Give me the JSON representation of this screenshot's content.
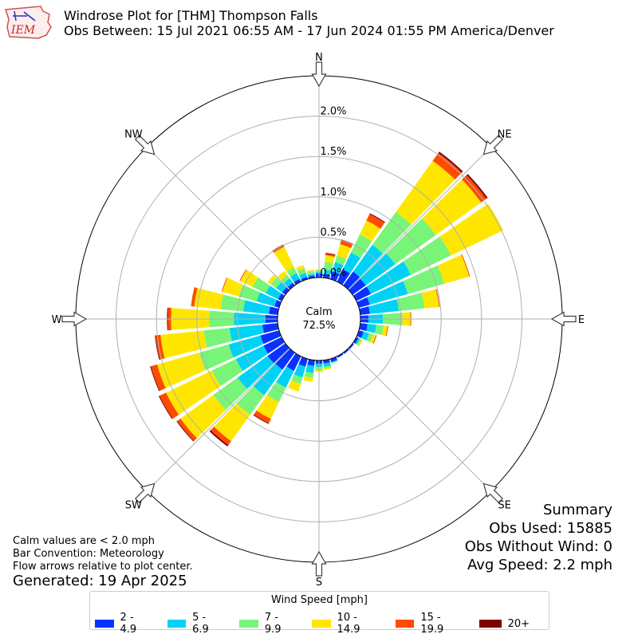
{
  "header": {
    "title": "Windrose Plot for [THM] Thompson Falls",
    "subtitle": "Obs Between: 15 Jul 2021 06:55 AM - 17 Jun 2024 01:55 PM America/Denver",
    "logo_text": "IEM"
  },
  "summary": {
    "heading": "Summary",
    "obs_used": "Obs Used: 15885",
    "obs_without_wind": "Obs Without Wind: 0",
    "avg_speed": "Avg Speed: 2.2 mph"
  },
  "notes": {
    "line1": "Calm values are < 2.0 mph",
    "line2": "Bar Convention: Meteorology",
    "line3": "Flow arrows relative to plot center."
  },
  "generated": "Generated: 19 Apr 2025",
  "colors": {
    "bins": [
      "#0a32ff",
      "#00d2f5",
      "#78f578",
      "#ffe600",
      "#ff4b00",
      "#7d0000"
    ],
    "grid": "#b0b0b0"
  },
  "chart_data": {
    "type": "windrose",
    "calm_label": "Calm",
    "calm_value": "72.5%",
    "radial_tick_labels": [
      "0.0%",
      "0.5%",
      "1.0%",
      "1.5%",
      "2.0%"
    ],
    "radial_ticks": [
      0,
      0.5,
      1.0,
      1.5,
      2.0
    ],
    "r_max": 2.5,
    "direction_labels": [
      "N",
      "NE",
      "E",
      "SE",
      "S",
      "SW",
      "W",
      "NW"
    ],
    "legend_title": "Wind Speed [mph]",
    "speed_bins": [
      "2 - 4.9",
      "5 - 6.9",
      "7 - 9.9",
      "10 - 14.9",
      "15 - 19.9",
      "20+"
    ],
    "directions_deg": [
      0,
      10,
      20,
      30,
      40,
      50,
      60,
      70,
      80,
      90,
      100,
      110,
      120,
      130,
      140,
      150,
      160,
      170,
      180,
      190,
      200,
      210,
      220,
      230,
      240,
      250,
      260,
      270,
      280,
      290,
      300,
      310,
      320,
      330,
      340,
      350
    ],
    "cumulative_percent": [
      [
        0.05,
        0.07,
        0.09,
        0.1,
        0.1,
        0.1
      ],
      [
        0.05,
        0.1,
        0.2,
        0.28,
        0.3,
        0.31
      ],
      [
        0.1,
        0.22,
        0.3,
        0.45,
        0.5,
        0.51
      ],
      [
        0.17,
        0.4,
        0.65,
        0.84,
        0.93,
        0.94
      ],
      [
        0.21,
        0.62,
        1.12,
        1.9,
        2.02,
        2.04
      ],
      [
        0.2,
        0.65,
        1.27,
        1.96,
        2.04,
        2.06
      ],
      [
        0.2,
        0.75,
        1.3,
        2.02,
        2.02,
        2.02
      ],
      [
        0.14,
        0.63,
        1.1,
        1.42,
        1.43,
        1.43
      ],
      [
        0.12,
        0.48,
        0.8,
        0.98,
        0.99,
        0.99
      ],
      [
        0.1,
        0.28,
        0.52,
        0.62,
        0.63,
        0.63
      ],
      [
        0.09,
        0.2,
        0.29,
        0.34,
        0.35,
        0.35
      ],
      [
        0.06,
        0.13,
        0.18,
        0.22,
        0.23,
        0.23
      ],
      [
        0.03,
        0.05,
        0.07,
        0.09,
        0.09,
        0.09
      ],
      [
        0.02,
        0.02,
        0.02,
        0.02,
        0.02,
        0.02
      ],
      [
        0.02,
        0.02,
        0.02,
        0.02,
        0.02,
        0.02
      ],
      [
        0.02,
        0.02,
        0.02,
        0.02,
        0.02,
        0.02
      ],
      [
        0.04,
        0.05,
        0.06,
        0.06,
        0.06,
        0.06
      ],
      [
        0.04,
        0.08,
        0.1,
        0.12,
        0.12,
        0.12
      ],
      [
        0.04,
        0.08,
        0.12,
        0.14,
        0.14,
        0.14
      ],
      [
        0.07,
        0.16,
        0.22,
        0.27,
        0.27,
        0.27
      ],
      [
        0.1,
        0.24,
        0.32,
        0.42,
        0.42,
        0.42
      ],
      [
        0.2,
        0.43,
        0.63,
        0.86,
        0.92,
        0.93
      ],
      [
        0.26,
        0.65,
        0.95,
        1.35,
        1.41,
        1.43
      ],
      [
        0.27,
        0.73,
        1.1,
        1.6,
        1.65,
        1.66
      ],
      [
        0.25,
        0.63,
        0.96,
        1.59,
        1.68,
        1.69
      ],
      [
        0.24,
        0.65,
        1.03,
        1.57,
        1.65,
        1.66
      ],
      [
        0.19,
        0.6,
        0.92,
        1.46,
        1.52,
        1.53
      ],
      [
        0.15,
        0.54,
        0.85,
        1.32,
        1.36,
        1.37
      ],
      [
        0.11,
        0.43,
        0.71,
        1.04,
        1.08,
        1.08
      ],
      [
        0.06,
        0.29,
        0.52,
        0.73,
        0.74,
        0.74
      ],
      [
        0.05,
        0.22,
        0.4,
        0.57,
        0.58,
        0.58
      ],
      [
        0.05,
        0.14,
        0.22,
        0.27,
        0.27,
        0.27
      ],
      [
        0.04,
        0.11,
        0.16,
        0.22,
        0.22,
        0.22
      ],
      [
        0.04,
        0.12,
        0.2,
        0.48,
        0.5,
        0.51
      ],
      [
        0.03,
        0.08,
        0.14,
        0.18,
        0.18,
        0.18
      ],
      [
        0.03,
        0.05,
        0.08,
        0.1,
        0.1,
        0.1
      ]
    ]
  }
}
